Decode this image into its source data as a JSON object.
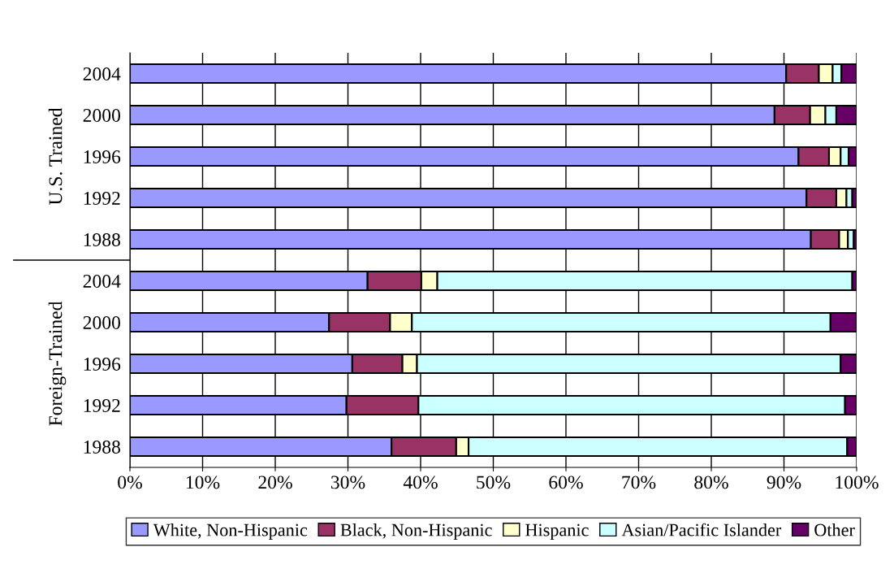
{
  "chart_data": {
    "type": "bar",
    "orientation": "horizontal",
    "stacked": true,
    "categories": [
      "2004",
      "2000",
      "1996",
      "1992",
      "1988",
      "2004",
      "2000",
      "1996",
      "1992",
      "1988"
    ],
    "annotations": [
      "U.S. Trained",
      "Foreign-Trained"
    ],
    "series": [
      {
        "name": "White, Non-Hispanic",
        "color": "#9999ff",
        "values": [
          90.3,
          88.7,
          92.0,
          93.1,
          93.7,
          32.7,
          27.4,
          30.6,
          29.8,
          36.0
        ]
      },
      {
        "name": "Black, Non-Hispanic",
        "color": "#993366",
        "values": [
          4.5,
          4.9,
          4.2,
          4.1,
          3.9,
          7.4,
          8.4,
          6.9,
          9.9,
          8.9
        ]
      },
      {
        "name": "Hispanic",
        "color": "#ffffcc",
        "values": [
          1.9,
          2.1,
          1.6,
          1.4,
          1.2,
          2.2,
          3.0,
          2.0,
          null,
          1.7
        ]
      },
      {
        "name": "Asian/Pacific Islander",
        "color": "#ccffff",
        "values": [
          1.2,
          1.5,
          1.1,
          0.8,
          0.8,
          57.1,
          57.6,
          58.3,
          58.7,
          52.1
        ]
      },
      {
        "name": "Other",
        "color": "#660066",
        "values": [
          2.1,
          2.8,
          1.1,
          0.6,
          0.4,
          0.6,
          3.6,
          2.2,
          1.6,
          1.3
        ]
      }
    ],
    "xlim": [
      0,
      100
    ],
    "xticks": [
      {
        "value": 0,
        "label": "0%"
      },
      {
        "value": 10,
        "label": "10%"
      },
      {
        "value": 20,
        "label": "20%"
      },
      {
        "value": 30,
        "label": "30%"
      },
      {
        "value": 40,
        "label": "40%"
      },
      {
        "value": 50,
        "label": "50%"
      },
      {
        "value": 60,
        "label": "60%"
      },
      {
        "value": 70,
        "label": "70%"
      },
      {
        "value": 80,
        "label": "80%"
      },
      {
        "value": 90,
        "label": "90%"
      },
      {
        "value": 100,
        "label": "100%"
      }
    ],
    "grid": "x",
    "legend": "bottom"
  }
}
